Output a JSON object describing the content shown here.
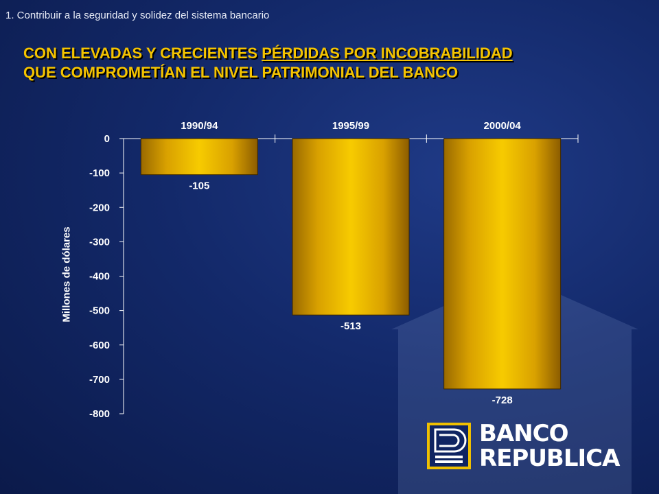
{
  "header": {
    "section": "1.  Contribuir a la seguridad y solidez del sistema  bancario",
    "title_line1_part1": "CON ELEVADAS Y CRECIENTES ",
    "title_line1_part2": "PÉRDIDAS POR INCOBRABILIDAD",
    "title_line2": "QUE COMPROMETÍAN  EL NIVEL PATRIMONIAL DEL BANCO"
  },
  "chart_data": {
    "type": "bar",
    "categories": [
      "1990/94",
      "1995/99",
      "2000/04"
    ],
    "values": [
      -105,
      -513,
      -728
    ],
    "data_labels": [
      "-105",
      "-513",
      "-728"
    ],
    "title": "",
    "xlabel": "",
    "ylabel": "Millones de dólares",
    "ylim": [
      -800,
      0
    ],
    "yticks": [
      0,
      -100,
      -200,
      -300,
      -400,
      -500,
      -600,
      -700,
      -800
    ],
    "ytick_labels": [
      "0",
      "-100",
      "-200",
      "-300",
      "-400",
      "-500",
      "-600",
      "-700",
      "-800"
    ],
    "category_axis_position": "top",
    "grid": false,
    "bar_color": "#f2c200"
  },
  "logo": {
    "line1": "BANCO",
    "line2": "REPUBLICA",
    "accent_color": "#f0c000"
  }
}
